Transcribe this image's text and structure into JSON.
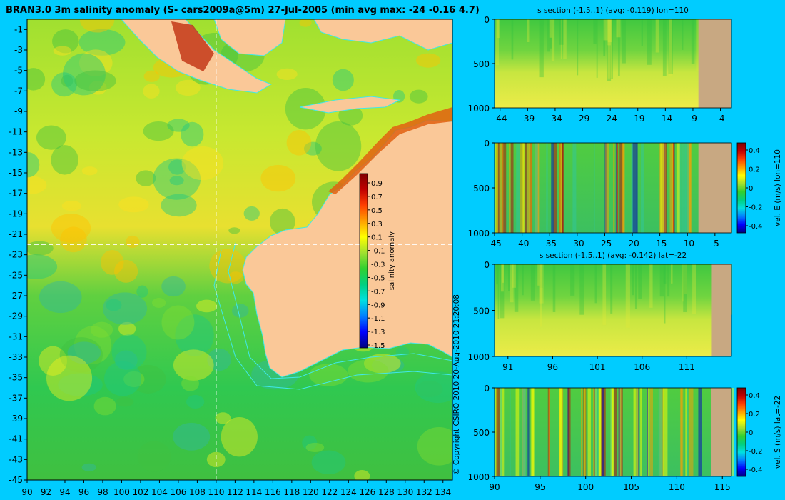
{
  "colors": {
    "background": "#00ccff",
    "land": "#fac898",
    "section_land": "#c8a882",
    "contour": "#40e8e8",
    "colormap": [
      "#00007f",
      "#0000ff",
      "#007fff",
      "#00e0e0",
      "#00d080",
      "#30d030",
      "#a0e030",
      "#ffff00",
      "#ffa000",
      "#ff4000",
      "#c00000",
      "#7f0000"
    ]
  },
  "map": {
    "title": "BRAN3.0 3m salinity anomaly (S- cars2009a@5m) 27-Jul-2005 (min avg max: -24 -0.16 4.7)",
    "x_ticks": [
      "90",
      "92",
      "94",
      "96",
      "98",
      "100",
      "102",
      "104",
      "106",
      "108",
      "110",
      "112",
      "114",
      "116",
      "118",
      "120",
      "122",
      "124",
      "126",
      "128",
      "130",
      "132",
      "134"
    ],
    "y_ticks": [
      "-1",
      "-3",
      "-5",
      "-7",
      "-9",
      "-11",
      "-13",
      "-15",
      "-17",
      "-19",
      "-21",
      "-23",
      "-25",
      "-27",
      "-29",
      "-31",
      "-33",
      "-35",
      "-37",
      "-39",
      "-41",
      "-43",
      "-45"
    ],
    "section_lon": 110,
    "section_lat": -22
  },
  "colorbar": {
    "label": "salinity anomaly",
    "ticks": [
      "0.9",
      "0.7",
      "0.5",
      "0.3",
      "0.1",
      "-0.1",
      "-0.3",
      "-0.5",
      "-0.7",
      "-0.9",
      "-1.1",
      "-1.3",
      "-1.5"
    ]
  },
  "copyright": "© Copyright CSIRO 2010   20-Aug-2010 21:20:08",
  "panels": [
    {
      "title": "s section (-1.5..1) (avg: -0.119) lon=110",
      "x_ticks": [
        "-44",
        "-39",
        "-34",
        "-29",
        "-24",
        "-19",
        "-14",
        "-9",
        "-4"
      ],
      "y_ticks": [
        "0",
        "500",
        "1000"
      ],
      "colorbar_label": "",
      "colorbar_ticks": []
    },
    {
      "title": "",
      "x_ticks": [
        "-45",
        "-40",
        "-35",
        "-30",
        "-25",
        "-20",
        "-15",
        "-10",
        "-5"
      ],
      "y_ticks": [
        "0",
        "500",
        "1000"
      ],
      "colorbar_label": "vel. E (m/s) lon=110",
      "colorbar_ticks": [
        "0.4",
        "0.2",
        "0",
        "-0.2",
        "-0.4"
      ]
    },
    {
      "title": "s section (-1.5..1) (avg: -0.142) lat=-22",
      "x_ticks": [
        "91",
        "96",
        "101",
        "106",
        "111"
      ],
      "y_ticks": [
        "0",
        "500",
        "1000"
      ],
      "colorbar_label": "",
      "colorbar_ticks": []
    },
    {
      "title": "",
      "x_ticks": [
        "90",
        "95",
        "100",
        "105",
        "110",
        "115"
      ],
      "y_ticks": [
        "0",
        "500",
        "1000"
      ],
      "colorbar_label": "vel. S (m/s) lat=-22",
      "colorbar_ticks": [
        "0.4",
        "0.2",
        "0",
        "-0.2",
        "-0.4"
      ]
    }
  ],
  "chart_data": [
    {
      "type": "heatmap",
      "title": "BRAN3.0 3m salinity anomaly (S- cars2009a@5m) 27-Jul-2005 (min avg max: -24 -0.16 4.7)",
      "xlabel": "",
      "ylabel": "",
      "xlim": [
        90,
        135
      ],
      "ylim": [
        -45,
        0
      ],
      "x_ticks": [
        90,
        92,
        94,
        96,
        98,
        100,
        102,
        104,
        106,
        108,
        110,
        112,
        114,
        116,
        118,
        120,
        122,
        124,
        126,
        128,
        130,
        132,
        134
      ],
      "y_ticks": [
        -1,
        -3,
        -5,
        -7,
        -9,
        -11,
        -13,
        -15,
        -17,
        -19,
        -21,
        -23,
        -25,
        -27,
        -29,
        -31,
        -33,
        -35,
        -37,
        -39,
        -41,
        -43,
        -45
      ],
      "color_range": [
        -1.5,
        1.0
      ],
      "colorbar_label": "salinity anomaly",
      "stats": {
        "min": -24,
        "avg": -0.16,
        "max": 4.7
      },
      "grid": false
    },
    {
      "type": "heatmap",
      "title": "s section (-1.5..1) (avg: -0.119) lon=110",
      "xlim": [
        -45,
        -2
      ],
      "ylim": [
        1000,
        0
      ],
      "color_range": [
        -1.5,
        1.0
      ],
      "avg": -0.119
    },
    {
      "type": "heatmap",
      "title": "",
      "xlim": [
        -45,
        -2
      ],
      "ylim": [
        1000,
        0
      ],
      "color_range": [
        -0.4,
        0.4
      ],
      "colorbar_label": "vel. E (m/s) lon=110"
    },
    {
      "type": "heatmap",
      "title": "s section (-1.5..1) (avg: -0.142) lat=-22",
      "xlim": [
        89.5,
        116
      ],
      "ylim": [
        1000,
        0
      ],
      "color_range": [
        -1.5,
        1.0
      ],
      "avg": -0.142
    },
    {
      "type": "heatmap",
      "title": "",
      "xlim": [
        90,
        116
      ],
      "ylim": [
        1000,
        0
      ],
      "color_range": [
        -0.4,
        0.4
      ],
      "colorbar_label": "vel. S (m/s) lat=-22"
    }
  ]
}
